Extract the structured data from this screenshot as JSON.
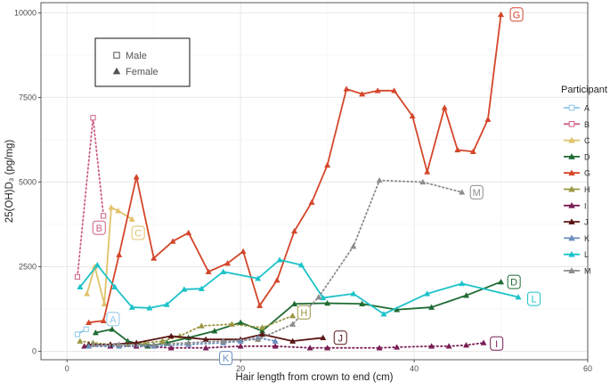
{
  "chart_data": {
    "type": "line",
    "title": "",
    "xlabel": "Hair length from crown to end (cm)",
    "ylabel": "25(OH)D₃ (pg/mg)",
    "xlim": [
      -3,
      60
    ],
    "ylim": [
      -250,
      10300
    ],
    "x_ticks": [
      0,
      20,
      40,
      60
    ],
    "y_ticks": [
      0,
      2500,
      5000,
      7500,
      10000
    ],
    "x_tick_labels": [
      "0",
      "20",
      "40",
      "60"
    ],
    "y_tick_labels": [
      "0",
      "2500",
      "5000",
      "7500",
      "10000"
    ],
    "grid": true,
    "shape_legend": {
      "items": [
        {
          "label": "Male",
          "shape": "square"
        },
        {
          "label": "Female",
          "shape": "triangle"
        }
      ]
    },
    "legend": {
      "title": "Participant",
      "placement": "right"
    },
    "series": [
      {
        "name": "A",
        "color": "#8ec5e8",
        "sex": "male",
        "dotted": false,
        "x": [
          1.2,
          2.2
        ],
        "y": [
          500,
          650
        ],
        "label_at": [
          5.3,
          950
        ]
      },
      {
        "name": "B",
        "color": "#cc6080",
        "sex": "male",
        "dotted": true,
        "x": [
          1.2,
          3.0,
          4.2
        ],
        "y": [
          2200,
          6900,
          4000
        ],
        "label_at": [
          3.7,
          3650
        ]
      },
      {
        "name": "C",
        "color": "#e0c26a",
        "sex": "female",
        "dotted": false,
        "x": [
          2.3,
          3.2,
          4.3,
          5.1,
          5.9,
          7.5
        ],
        "y": [
          1700,
          2500,
          1400,
          4250,
          4150,
          3900
        ],
        "label_at": [
          8.2,
          3500
        ]
      },
      {
        "name": "D",
        "color": "#1e6b32",
        "sex": "female",
        "dotted": false,
        "x": [
          3.3,
          5.2,
          7.0,
          9.3,
          11.5,
          14.0,
          17.0,
          20.0,
          22.5,
          26.2,
          30.0,
          34.0,
          38.0,
          42.0,
          46.0,
          50.0
        ],
        "y": [
          550,
          650,
          300,
          150,
          250,
          400,
          600,
          850,
          600,
          1400,
          1420,
          1400,
          1230,
          1300,
          1650,
          2050
        ],
        "label_at": [
          51.5,
          2050
        ]
      },
      {
        "name": "G",
        "color": "#d4462a",
        "sex": "female",
        "dotted": false,
        "x": [
          2.5,
          4.2,
          6.0,
          8.0,
          10.0,
          12.2,
          14.0,
          16.3,
          18.5,
          20.3,
          22.2,
          24.2,
          26.2,
          28.2,
          30.0,
          32.2,
          34.0,
          35.8,
          37.7,
          39.8,
          41.5,
          43.5,
          45.0,
          46.8,
          48.5,
          50.0
        ],
        "y": [
          850,
          900,
          2850,
          5150,
          2750,
          3250,
          3500,
          2350,
          2600,
          2950,
          1350,
          2100,
          3550,
          4400,
          5500,
          7750,
          7600,
          7700,
          7700,
          6950,
          5300,
          7200,
          5950,
          5900,
          6850,
          9950
        ],
        "label_at": [
          51.8,
          9950
        ]
      },
      {
        "name": "H",
        "color": "#9a9640",
        "sex": "female",
        "dotted": true,
        "x": [
          1.5,
          3.0,
          5.0,
          7.0,
          9.0,
          11.0,
          13.0,
          15.5,
          19.0,
          22.5,
          26.0
        ],
        "y": [
          300,
          250,
          200,
          200,
          250,
          300,
          450,
          750,
          800,
          700,
          1050
        ],
        "label_at": [
          27.3,
          1150
        ]
      },
      {
        "name": "I",
        "color": "#7a1e55",
        "sex": "female",
        "dotted": true,
        "x": [
          2.0,
          5.0,
          8.0,
          12.0,
          16.0,
          20.0,
          24.0,
          28.0,
          30.0,
          36.0,
          38.0,
          42.0,
          44.0,
          46.0,
          48.0
        ],
        "y": [
          150,
          150,
          150,
          100,
          100,
          150,
          150,
          100,
          100,
          100,
          120,
          150,
          150,
          180,
          250
        ],
        "label_at": [
          49.5,
          230
        ]
      },
      {
        "name": "J",
        "color": "#5a1515",
        "sex": "female",
        "dotted": false,
        "x": [
          2.5,
          5.0,
          8.0,
          12.0,
          16.0,
          20.0,
          22.5,
          26.0,
          29.5
        ],
        "y": [
          200,
          200,
          250,
          450,
          350,
          350,
          500,
          300,
          400
        ],
        "label_at": [
          31.5,
          400
        ]
      },
      {
        "name": "K",
        "color": "#6a8fbf",
        "sex": "female",
        "dotted": true,
        "x": [
          2.5,
          6.0,
          10.0,
          14.0,
          18.0,
          20.0,
          22.0,
          24.0
        ],
        "y": [
          150,
          150,
          150,
          200,
          250,
          300,
          400,
          300
        ],
        "label_at": [
          18.3,
          -200
        ]
      },
      {
        "name": "L",
        "color": "#1cc2c9",
        "sex": "female",
        "dotted": false,
        "x": [
          1.5,
          3.5,
          5.5,
          7.5,
          9.5,
          11.5,
          13.5,
          15.5,
          18.0,
          22.0,
          24.5,
          27.0,
          29.5,
          33.0,
          36.5,
          41.5,
          45.5,
          52.0
        ],
        "y": [
          1900,
          2550,
          1900,
          1300,
          1280,
          1380,
          1830,
          1850,
          2350,
          2150,
          2700,
          2550,
          1580,
          1700,
          1100,
          1700,
          2000,
          1600
        ],
        "label_at": [
          53.8,
          1550
        ]
      },
      {
        "name": "M",
        "color": "#8c8c8c",
        "sex": "female",
        "dotted": true,
        "x": [
          3.0,
          6.0,
          10.0,
          14.0,
          18.0,
          22.0,
          26.0,
          29.0,
          33.0,
          36.0,
          41.0,
          45.5
        ],
        "y": [
          200,
          200,
          200,
          250,
          300,
          350,
          800,
          1600,
          3100,
          5050,
          5000,
          4700
        ],
        "label_at": [
          47.2,
          4700
        ]
      }
    ]
  }
}
